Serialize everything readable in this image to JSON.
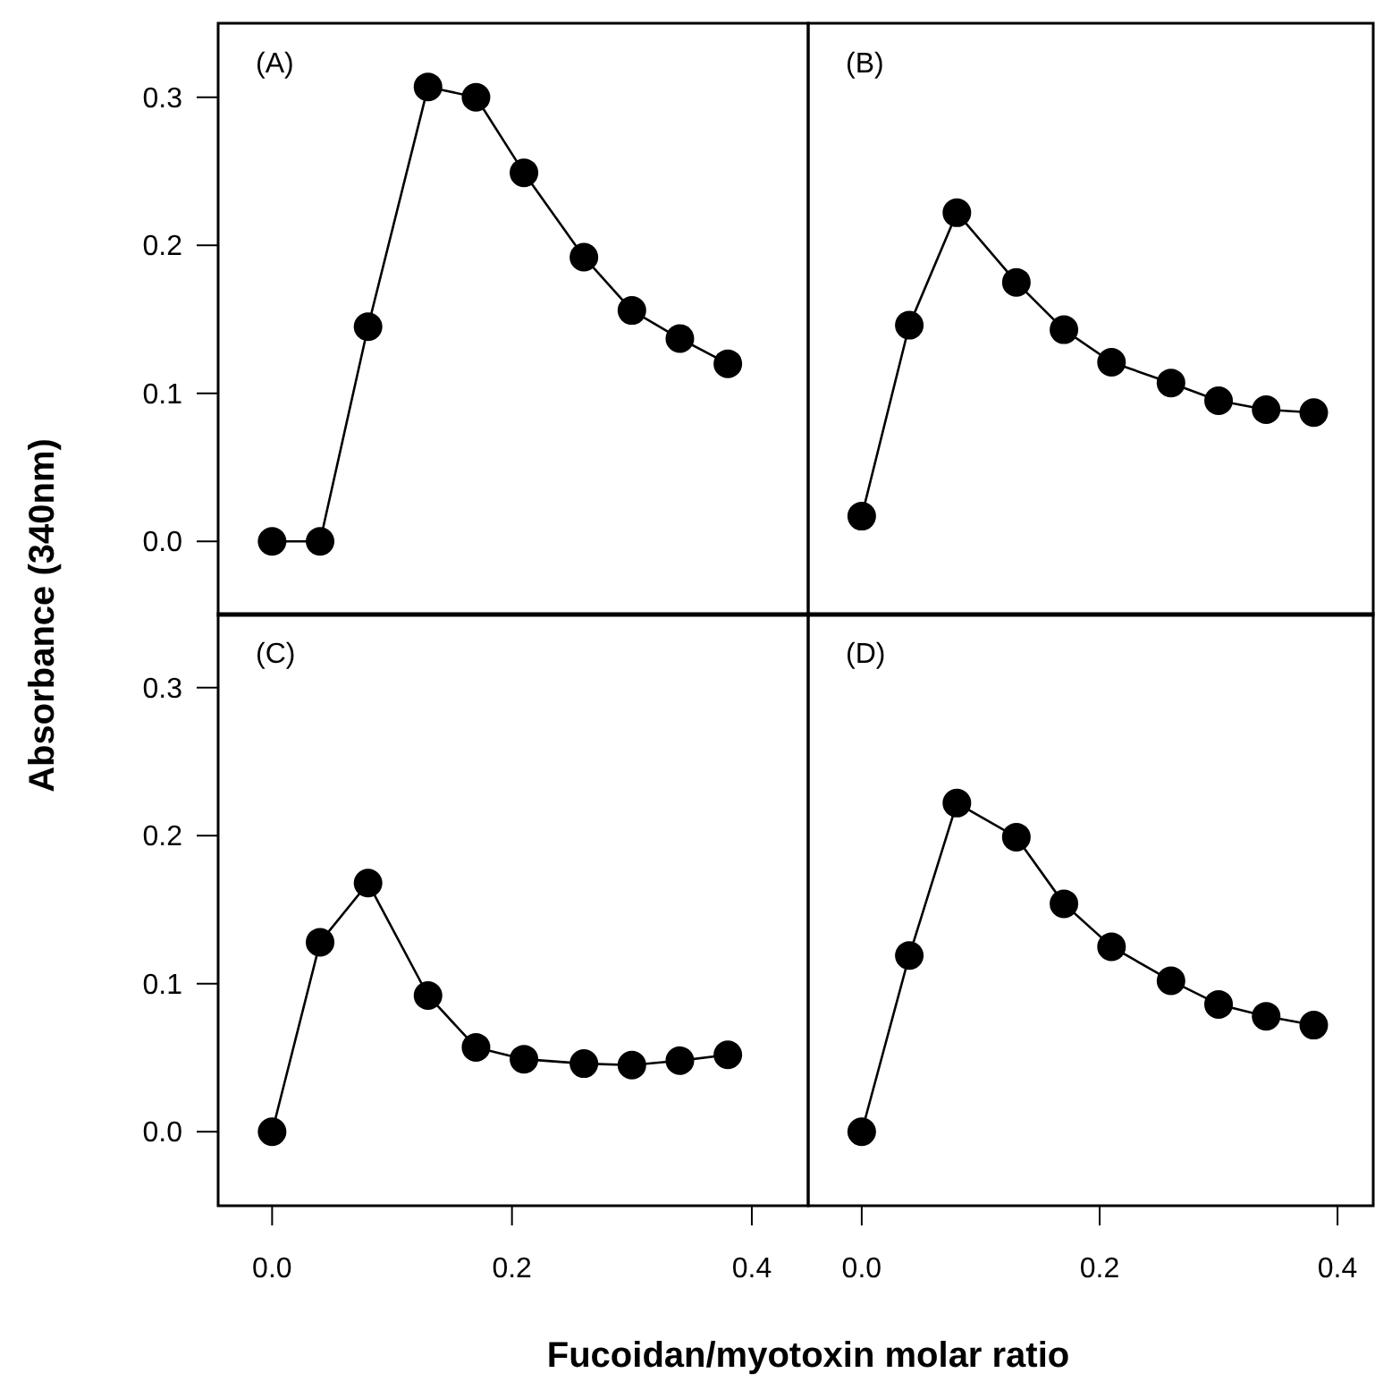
{
  "chart_data": [
    {
      "type": "line",
      "annotations": [
        "(A)"
      ],
      "ylabel": "Absorbance (340nm)",
      "x": [
        0,
        0.04,
        0.08,
        0.13,
        0.17,
        0.21,
        0.26,
        0.3,
        0.34,
        0.38
      ],
      "values": [
        0,
        0,
        0.145,
        0.307,
        0.3,
        0.249,
        0.192,
        0.156,
        0.137,
        0.12
      ],
      "color": "#000000",
      "marker": "circle",
      "line_style": "solid",
      "xlim": [
        -0.045,
        0.447
      ],
      "ylim": [
        -0.05,
        0.35
      ],
      "yticks": [
        {
          "value": 0,
          "label": "0.0"
        },
        {
          "value": 0.1,
          "label": "0.1"
        },
        {
          "value": 0.2,
          "label": "0.2"
        },
        {
          "value": 0.3,
          "label": "0.3"
        }
      ],
      "tick_labels": "y",
      "grid": false
    },
    {
      "type": "line",
      "annotations": [
        "(B)"
      ],
      "x": [
        0,
        0.04,
        0.08,
        0.13,
        0.17,
        0.21,
        0.26,
        0.3,
        0.34,
        0.38
      ],
      "values": [
        0.017,
        0.146,
        0.222,
        0.175,
        0.143,
        0.121,
        0.107,
        0.095,
        0.089,
        0.087
      ],
      "color": "#000000",
      "marker": "circle",
      "line_style": "solid",
      "xlim": [
        -0.045,
        0.43
      ],
      "ylim": [
        -0.05,
        0.35
      ],
      "tick_labels": false,
      "grid": false
    },
    {
      "type": "line",
      "annotations": [
        "(C)"
      ],
      "xlabel": "Fucoidan/myotoxin molar ratio",
      "x": [
        0,
        0.04,
        0.08,
        0.13,
        0.17,
        0.21,
        0.26,
        0.3,
        0.34,
        0.38
      ],
      "values": [
        0,
        0.128,
        0.168,
        0.092,
        0.057,
        0.049,
        0.046,
        0.045,
        0.048,
        0.052
      ],
      "color": "#000000",
      "marker": "circle",
      "line_style": "solid",
      "xlim": [
        -0.045,
        0.447
      ],
      "ylim": [
        -0.05,
        0.35
      ],
      "xticks": [
        {
          "value": 0,
          "label": "0.0"
        },
        {
          "value": 0.2,
          "label": "0.2"
        },
        {
          "value": 0.4,
          "label": "0.4"
        }
      ],
      "yticks": [
        {
          "value": 0,
          "label": "0.0"
        },
        {
          "value": 0.1,
          "label": "0.1"
        },
        {
          "value": 0.2,
          "label": "0.2"
        },
        {
          "value": 0.3,
          "label": "0.3"
        }
      ],
      "grid": false
    },
    {
      "type": "line",
      "annotations": [
        "(D)"
      ],
      "x": [
        0,
        0.04,
        0.08,
        0.13,
        0.17,
        0.21,
        0.26,
        0.3,
        0.34,
        0.38
      ],
      "values": [
        0,
        0.119,
        0.222,
        0.199,
        0.154,
        0.125,
        0.102,
        0.086,
        0.078,
        0.072
      ],
      "color": "#000000",
      "marker": "circle",
      "line_style": "solid",
      "xlim": [
        -0.045,
        0.43
      ],
      "ylim": [
        -0.05,
        0.35
      ],
      "xticks": [
        {
          "value": 0,
          "label": "0.0"
        },
        {
          "value": 0.2,
          "label": "0.2"
        },
        {
          "value": 0.4,
          "label": "0.4"
        }
      ],
      "tick_labels": "x",
      "grid": false
    }
  ]
}
